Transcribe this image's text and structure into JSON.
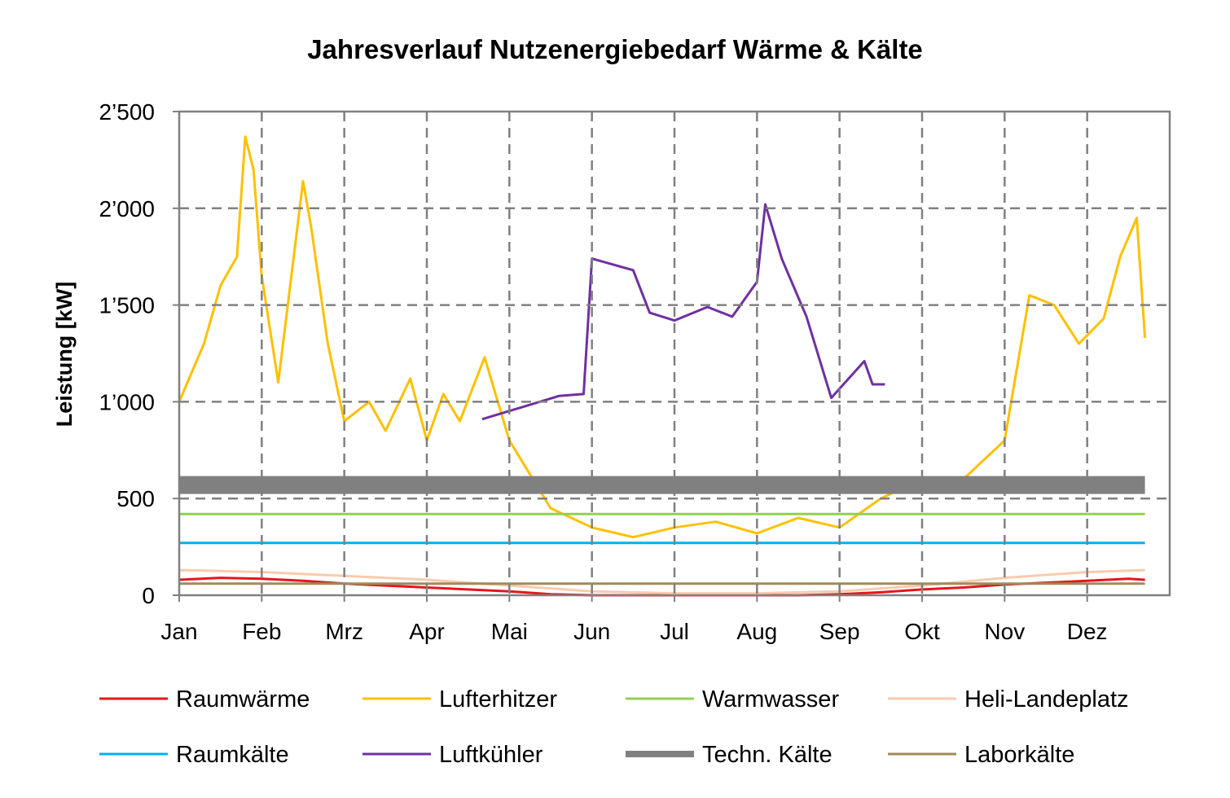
{
  "chart_data": {
    "type": "line",
    "title": "Jahresverlauf Nutzenergiebedarf Wärme & Kälte",
    "xlabel": "",
    "ylabel": "Leistung [kW]",
    "ylim": [
      0,
      2500
    ],
    "yticks": [
      0,
      500,
      1000,
      1500,
      2000,
      2500
    ],
    "ytick_labels": [
      "0",
      "500",
      "1’000",
      "1’500",
      "2’000",
      "2’500"
    ],
    "xlim": [
      0,
      12
    ],
    "categories": [
      "Jan",
      "Feb",
      "Mrz",
      "Apr",
      "Mai",
      "Jun",
      "Jul",
      "Aug",
      "Sep",
      "Okt",
      "Nov",
      "Dez"
    ],
    "grid": true,
    "legend_position": "bottom",
    "series": [
      {
        "name": "Raumwärme",
        "color": "#e8141b",
        "x": [
          0,
          0.5,
          1,
          1.5,
          2,
          2.5,
          3,
          3.5,
          4,
          4.5,
          5,
          5.5,
          6,
          6.5,
          7,
          7.5,
          8,
          8.5,
          9,
          9.5,
          10,
          10.5,
          11,
          11.5,
          11.7
        ],
        "y": [
          80,
          90,
          85,
          75,
          60,
          50,
          40,
          30,
          20,
          5,
          0,
          0,
          0,
          0,
          0,
          0,
          5,
          15,
          30,
          40,
          55,
          65,
          75,
          85,
          80
        ]
      },
      {
        "name": "Lufterhitzer",
        "color": "#ffc000",
        "x": [
          0,
          0.3,
          0.5,
          0.7,
          0.8,
          0.9,
          1.0,
          1.2,
          1.5,
          1.6,
          1.8,
          2.0,
          2.3,
          2.5,
          2.8,
          3.0,
          3.2,
          3.4,
          3.7,
          4.0,
          4.5,
          5.0,
          5.5,
          6.0,
          6.5,
          7.0,
          7.5,
          8.0,
          8.5,
          9.0,
          9.5,
          10.0,
          10.3,
          10.6,
          10.9,
          11.2,
          11.4,
          11.6,
          11.7
        ],
        "y": [
          1000,
          1300,
          1600,
          1750,
          2370,
          2200,
          1650,
          1100,
          2140,
          1900,
          1300,
          900,
          1000,
          850,
          1120,
          800,
          1040,
          900,
          1230,
          800,
          450,
          350,
          300,
          350,
          380,
          320,
          400,
          350,
          500,
          600,
          600,
          800,
          1550,
          1500,
          1300,
          1430,
          1750,
          1950,
          1330
        ]
      },
      {
        "name": "Warmwasser",
        "color": "#92d050",
        "x": [
          0,
          2,
          4,
          6,
          8,
          10,
          11.7
        ],
        "y": [
          420,
          420,
          420,
          420,
          420,
          420,
          420
        ]
      },
      {
        "name": "Heli-Landeplatz",
        "color": "#f8cbad",
        "x": [
          0,
          1,
          2,
          3,
          4,
          5,
          6,
          7,
          8,
          9,
          10,
          11,
          11.7
        ],
        "y": [
          130,
          120,
          100,
          80,
          50,
          20,
          10,
          10,
          20,
          50,
          90,
          120,
          130
        ]
      },
      {
        "name": "Raumkälte",
        "color": "#00b0f0",
        "x": [
          0,
          2,
          4,
          6,
          8,
          10,
          11.7
        ],
        "y": [
          270,
          270,
          270,
          270,
          270,
          270,
          270
        ]
      },
      {
        "name": "Luftkühler",
        "color": "#7030a0",
        "x": [
          3.67,
          4.6,
          4.9,
          5.0,
          5.5,
          5.7,
          6.0,
          6.4,
          6.7,
          7.0,
          7.1,
          7.3,
          7.6,
          7.9,
          8.3,
          8.4,
          8.55
        ],
        "y": [
          910,
          1030,
          1040,
          1740,
          1680,
          1460,
          1420,
          1490,
          1440,
          1620,
          2020,
          1740,
          1440,
          1020,
          1210,
          1090,
          1090
        ]
      },
      {
        "name": "Techn. Kälte",
        "color": "#808080",
        "x": [
          0,
          11.7
        ],
        "y": [
          570,
          570
        ]
      },
      {
        "name": "Laborkälte",
        "color": "#a08a5a",
        "x": [
          0,
          11.7
        ],
        "y": [
          60,
          60
        ]
      }
    ]
  }
}
